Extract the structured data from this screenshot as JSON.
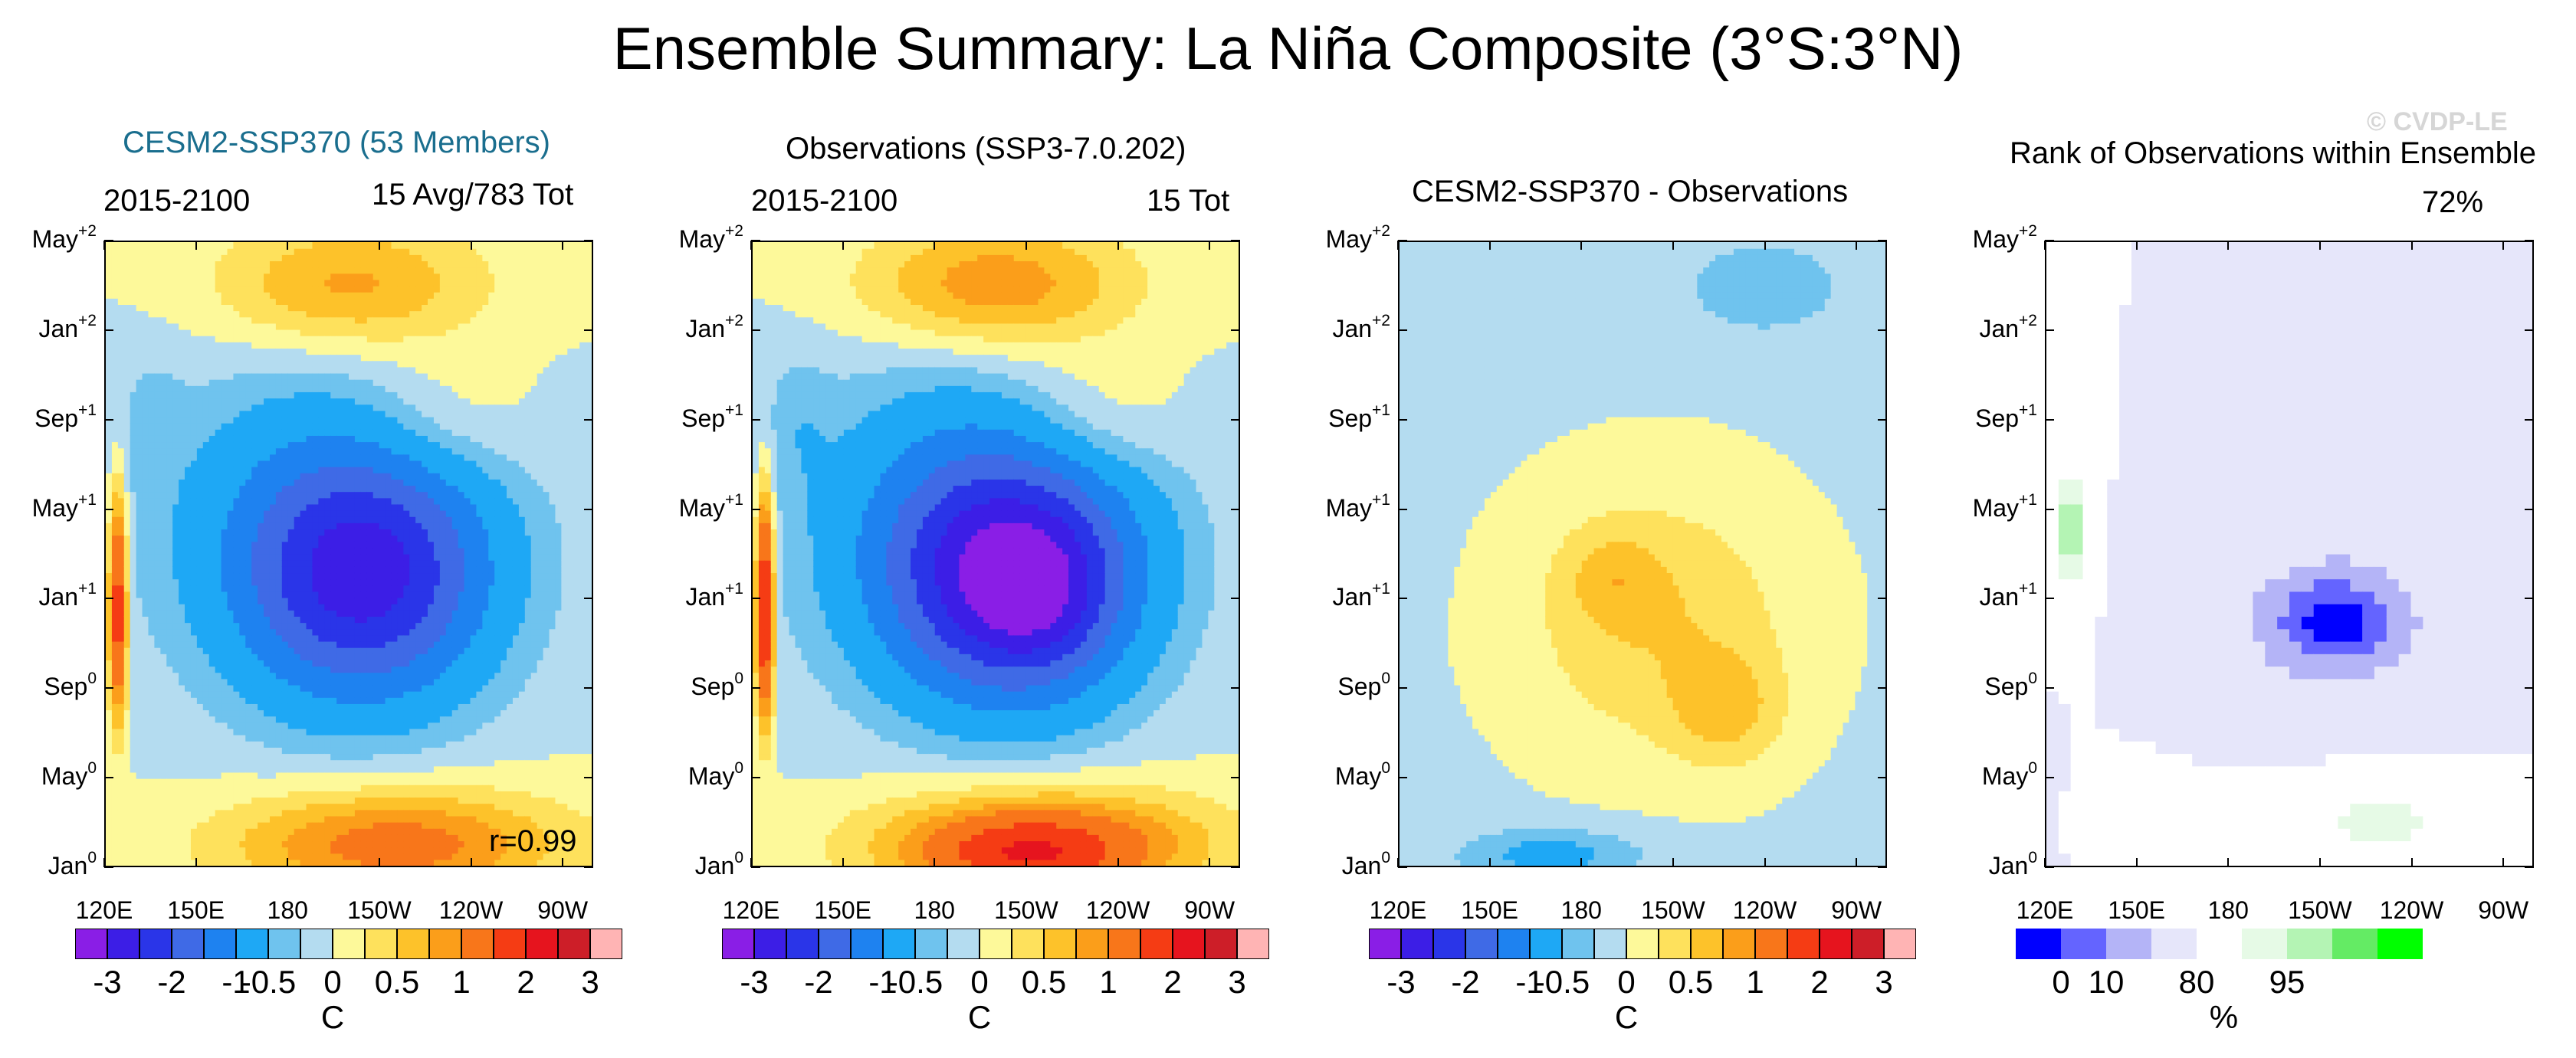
{
  "title": "Ensemble Summary: La Niña Composite (3°S:3°N)",
  "credit": "© CVDP-LE",
  "colors": {
    "temperature_scale": [
      "#8a1ee6",
      "#3c1ee6",
      "#2a35e8",
      "#3f6ae6",
      "#1e82f0",
      "#1ea8f5",
      "#6fc3ee",
      "#b4dcf0",
      "#fdf99a",
      "#fee15c",
      "#fdc22a",
      "#fb9e1a",
      "#f8761a",
      "#f53c14",
      "#e6141e",
      "#cd1e28",
      "#ffb4b4"
    ],
    "rank_scale": [
      "#0000ff",
      "#6464ff",
      "#b4b4f7",
      "#e6e6fa",
      "#ffffff",
      "#e6fae6",
      "#b4f4b4",
      "#64eb64",
      "#00ff00"
    ]
  },
  "panels": [
    {
      "title": "CESM2-SSP370 (53 Members)",
      "title_color": "#1a6e8e",
      "period": "2015-2100",
      "right_label": "15 Avg/783 Tot",
      "corner_note": "r=0.99",
      "colorbar_unit": "C"
    },
    {
      "title": "Observations (SSP3-7.0.202)",
      "title_color": "#000000",
      "period": "2015-2100",
      "right_label": "15 Tot",
      "corner_note": "",
      "colorbar_unit": "C"
    },
    {
      "title": "CESM2-SSP370 - Observations",
      "title_color": "#000000",
      "period": "",
      "right_label": "",
      "corner_note": "",
      "colorbar_unit": "C"
    },
    {
      "title": "Rank of Observations within Ensemble",
      "title_color": "#000000",
      "period": "",
      "right_label": "72%",
      "corner_note": "",
      "colorbar_unit": "%"
    }
  ],
  "chart_data": {
    "type": "heatmap",
    "description_axes": "Hovmöller diagrams: longitude (x) vs. time lag (y)",
    "x_ticks": [
      "120E",
      "150E",
      "180",
      "150W",
      "120W",
      "90W"
    ],
    "x_range": [
      120,
      280
    ],
    "y_ticks": [
      {
        "base": "Jan",
        "sup": "0"
      },
      {
        "base": "May",
        "sup": "0"
      },
      {
        "base": "Sep",
        "sup": "0"
      },
      {
        "base": "Jan",
        "sup": "+1"
      },
      {
        "base": "May",
        "sup": "+1"
      },
      {
        "base": "Sep",
        "sup": "+1"
      },
      {
        "base": "Jan",
        "sup": "+2"
      },
      {
        "base": "May",
        "sup": "+2"
      }
    ],
    "temperature_colorbar_labels": [
      "-3",
      "-2",
      "-1",
      "-0.5",
      "0",
      "0.5",
      "1",
      "2",
      "3"
    ],
    "temperature_levels": [
      -3.5,
      -3,
      -2.5,
      -2,
      -1.5,
      -1,
      -0.5,
      -0.25,
      0,
      0.25,
      0.5,
      0.75,
      1,
      1.5,
      2,
      2.5,
      3,
      3.5
    ],
    "rank_colorbar_labels": [
      "0",
      "10",
      "80",
      "95"
    ],
    "rank_levels": [
      0,
      5,
      10,
      20,
      50,
      80,
      90,
      95,
      100
    ]
  }
}
